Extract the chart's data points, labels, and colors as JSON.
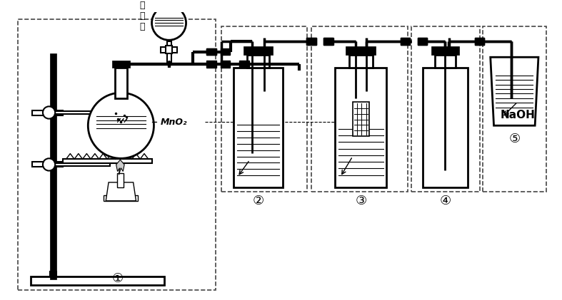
{
  "bg_color": "#ffffff",
  "lc": "#000000",
  "figsize": [
    7.87,
    4.21
  ],
  "dpi": 100,
  "labels": {
    "hcl": "浓\n盐\n酸",
    "mno2": "MnO₂",
    "naoh": "NaOH",
    "n1": "①",
    "n2": "②",
    "n3": "③",
    "n4": "④",
    "n5": "⑤"
  }
}
